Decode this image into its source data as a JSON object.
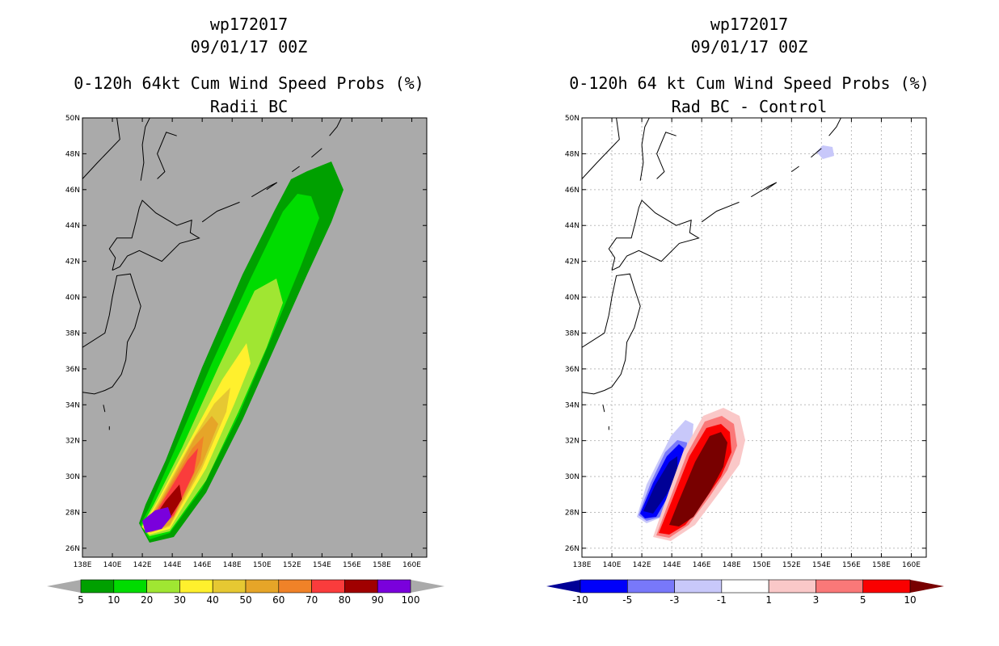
{
  "left_panel": {
    "storm_id": "wp172017",
    "date": "09/01/17 00Z",
    "title": "0-120h 64kt Cum Wind Speed Probs (%)",
    "subtitle": "Radii BC",
    "colorbar": {
      "labels": [
        "5",
        "10",
        "20",
        "30",
        "40",
        "50",
        "60",
        "70",
        "80",
        "90",
        "100"
      ],
      "colors": [
        "#00a000",
        "#00dc00",
        "#a0e632",
        "#fff02d",
        "#e6c832",
        "#e6a528",
        "#f08228",
        "#fa3c3c",
        "#a00000",
        "#7a00dc"
      ],
      "under_color": "#aaaaaa",
      "over_color": "#aaaaaa"
    },
    "background": "#aaaaaa"
  },
  "right_panel": {
    "storm_id": "wp172017",
    "date": "09/01/17 00Z",
    "title": "0-120h 64 kt Cum Wind Speed Probs (%)",
    "subtitle": "Rad BC - Control",
    "colorbar": {
      "labels": [
        "-10",
        "-5",
        "-3",
        "-1",
        "1",
        "3",
        "5",
        "10"
      ],
      "colors": [
        "#0000fa",
        "#7878fa",
        "#c8c8fa",
        "#ffffff",
        "#fac8c8",
        "#fa7878",
        "#fa0000"
      ],
      "under_color": "#000096",
      "over_color": "#780000"
    },
    "background": "#ffffff"
  },
  "axes": {
    "lat_labels": [
      "50N",
      "48N",
      "46N",
      "44N",
      "42N",
      "40N",
      "38N",
      "36N",
      "34N",
      "32N",
      "30N",
      "28N",
      "26N"
    ],
    "lon_labels": [
      "138E",
      "140E",
      "142E",
      "144E",
      "146E",
      "148E",
      "150E",
      "152E",
      "154E",
      "156E",
      "158E",
      "160E"
    ],
    "lat_range": [
      25.5,
      50
    ],
    "lon_range": [
      138,
      161
    ]
  }
}
